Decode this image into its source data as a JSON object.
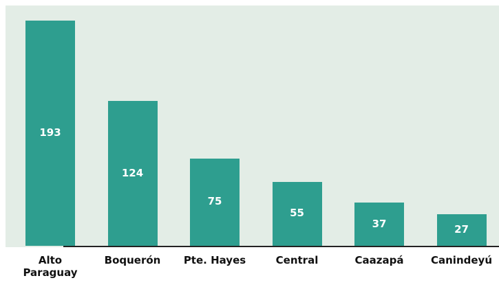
{
  "chart_data": {
    "type": "bar",
    "categories": [
      "Alto Paraguay",
      "Boquerón",
      "Pte. Hayes",
      "Central",
      "Caazapá",
      "Canindeyú"
    ],
    "values": [
      193,
      124,
      75,
      55,
      37,
      27
    ],
    "color": "#2e9e8f"
  }
}
